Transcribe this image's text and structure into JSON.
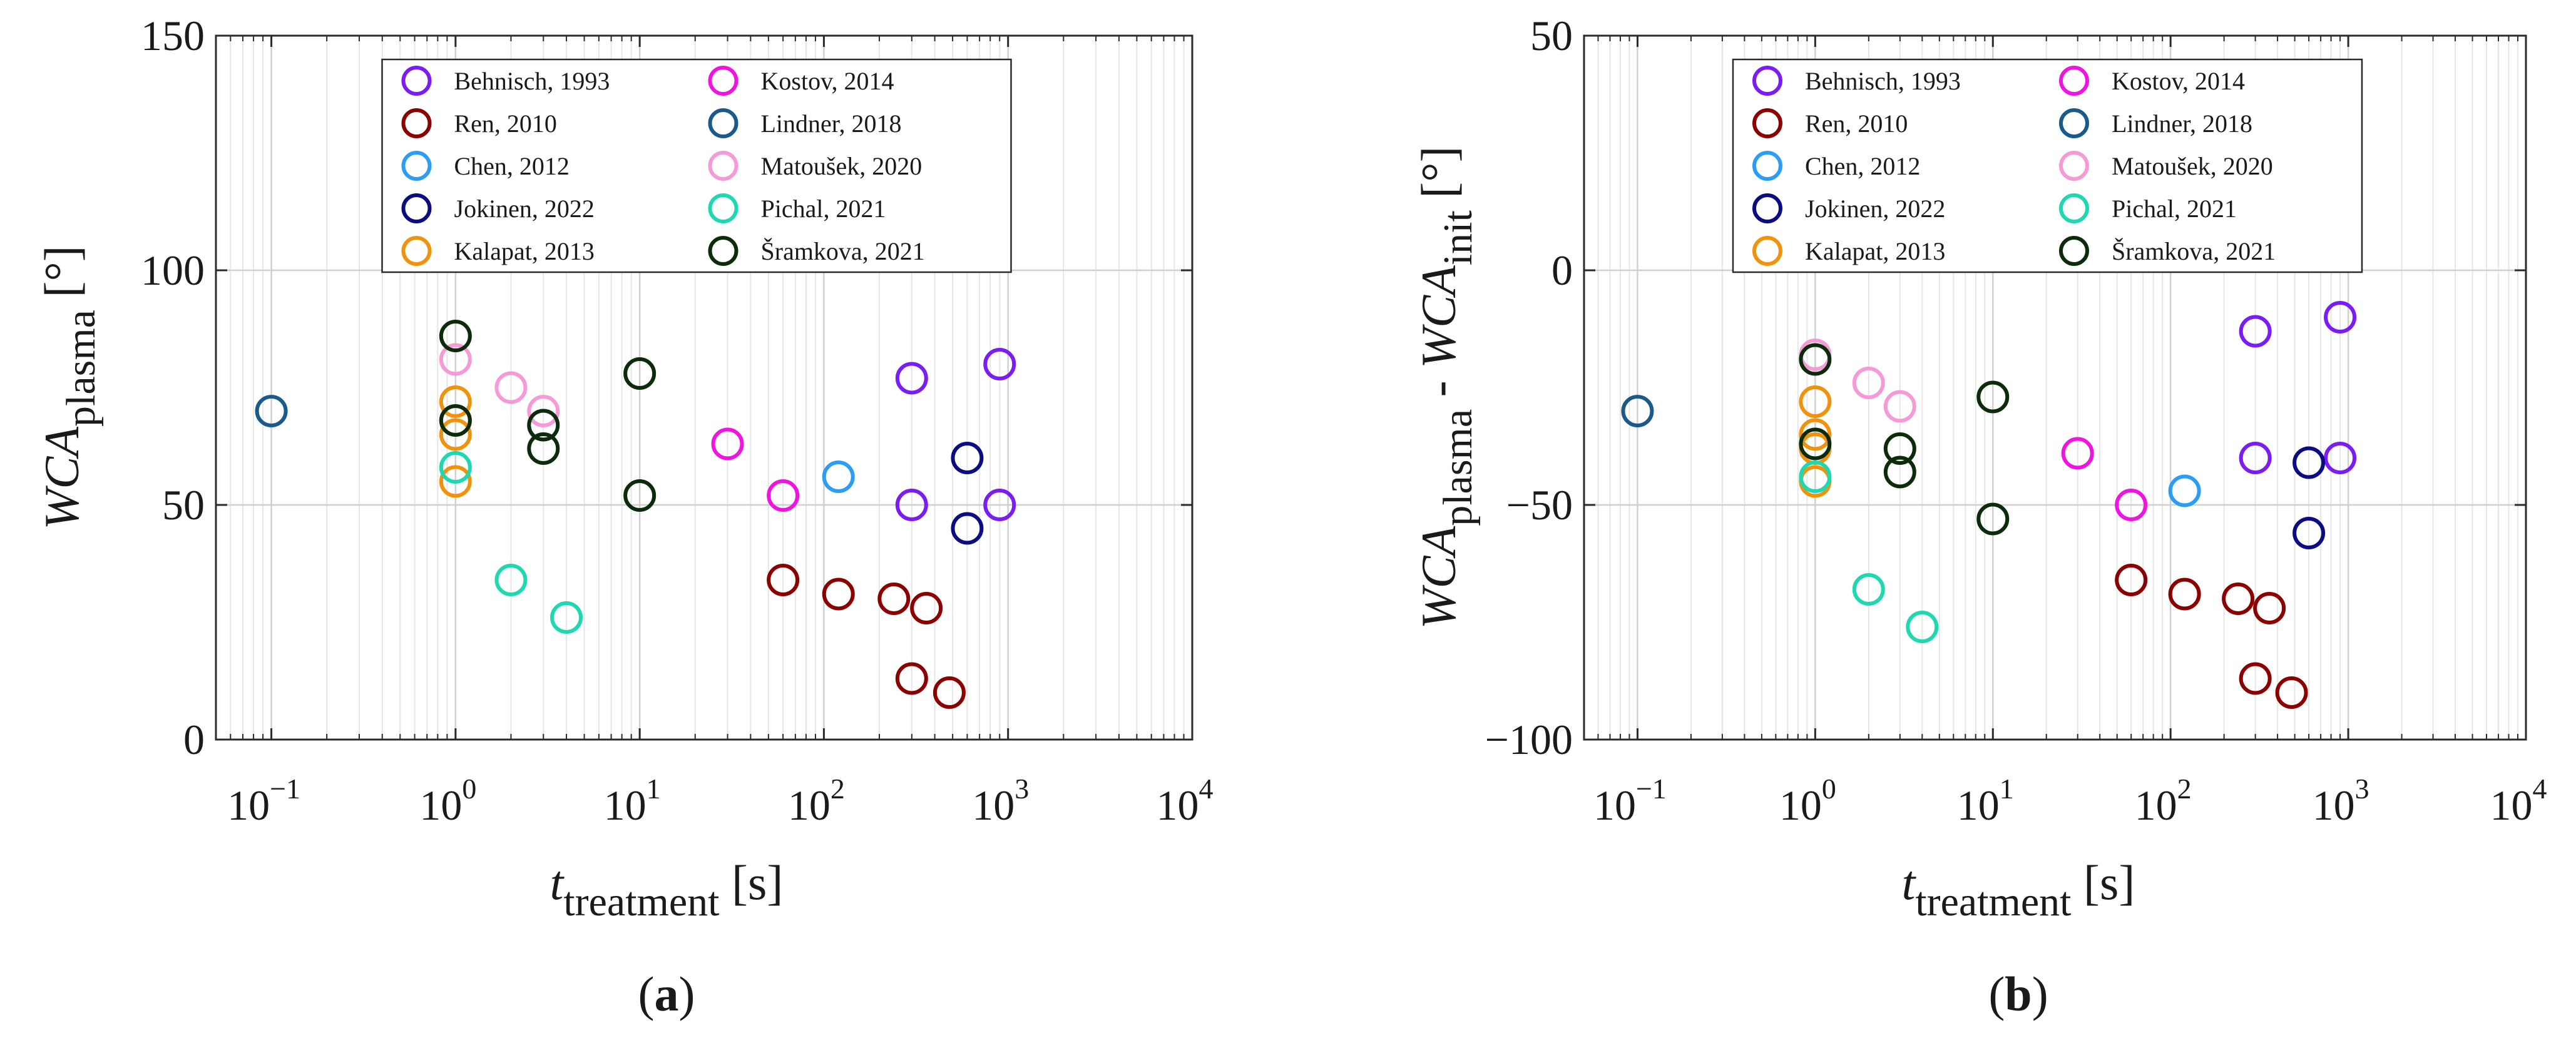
{
  "colors": {
    "behnisch": "#7a1cf2",
    "ren": "#8b0000",
    "chen": "#2b9df4",
    "jokinen": "#0b0b82",
    "kalapat": "#f0920c",
    "kostov": "#ef14e0",
    "lindner": "#1a5a8a",
    "matousek": "#f59ad6",
    "pichal": "#1dd8b0",
    "sramkova": "#0b2b0b"
  },
  "chart_data": [
    {
      "type": "scatter",
      "panel_label": "a",
      "xscale": "log",
      "xlim": [
        0.05,
        10000
      ],
      "ylim": [
        0,
        150
      ],
      "yticks": [
        0,
        50,
        100,
        150
      ],
      "xticks": [
        0.1,
        1,
        10,
        100,
        1000,
        10000
      ],
      "xtick_labels": [
        {
          "base": "10",
          "exp": "−1"
        },
        {
          "base": "10",
          "exp": "0"
        },
        {
          "base": "10",
          "exp": "1"
        },
        {
          "base": "10",
          "exp": "2"
        },
        {
          "base": "10",
          "exp": "3"
        },
        {
          "base": "10",
          "exp": "4"
        }
      ],
      "xlabel": {
        "main": "t",
        "sub": "treatment",
        "unit": "[s]"
      },
      "ylabel": {
        "parts": [
          {
            "t": "WCA",
            "italic": true
          },
          {
            "t": "plasma",
            "sub": true
          }
        ],
        "unit": "[°]"
      },
      "legend_location": "top",
      "series": [
        {
          "name": "Behnisch, 1993",
          "color_key": "behnisch",
          "x": [
            300,
            300,
            900,
            900
          ],
          "y": [
            77,
            50,
            80,
            50
          ]
        },
        {
          "name": "Ren, 2010",
          "color_key": "ren",
          "x": [
            60,
            120,
            240,
            300,
            360,
            480
          ],
          "y": [
            34,
            31,
            30,
            13,
            28,
            10
          ]
        },
        {
          "name": "Chen, 2012",
          "color_key": "chen",
          "x": [
            120
          ],
          "y": [
            56
          ]
        },
        {
          "name": "Jokinen, 2022",
          "color_key": "jokinen",
          "x": [
            600,
            600
          ],
          "y": [
            60,
            45
          ]
        },
        {
          "name": "Kalapat, 2013",
          "color_key": "kalapat",
          "x": [
            1,
            1,
            1,
            1
          ],
          "y": [
            72,
            68,
            65,
            55
          ]
        },
        {
          "name": "Kostov, 2014",
          "color_key": "kostov",
          "x": [
            30,
            60
          ],
          "y": [
            63,
            52
          ]
        },
        {
          "name": "Lindner, 2018",
          "color_key": "lindner",
          "x": [
            0.1
          ],
          "y": [
            70
          ]
        },
        {
          "name": "Matoušek, 2020",
          "color_key": "matousek",
          "x": [
            1,
            2,
            3
          ],
          "y": [
            81,
            75,
            70
          ]
        },
        {
          "name": "Pichal, 2021",
          "color_key": "pichal",
          "x": [
            1,
            2,
            4
          ],
          "y": [
            58,
            34,
            26
          ]
        },
        {
          "name": "Šramkova, 2021",
          "color_key": "sramkova",
          "x": [
            1,
            1,
            3,
            3,
            10,
            10
          ],
          "y": [
            86,
            68,
            67,
            62,
            78,
            52
          ]
        }
      ]
    },
    {
      "type": "scatter",
      "panel_label": "b",
      "xscale": "log",
      "xlim": [
        0.05,
        10000
      ],
      "ylim": [
        -100,
        50
      ],
      "yticks": [
        -100,
        -50,
        0,
        50
      ],
      "ytick_labels": [
        "−100",
        "−50",
        "0",
        "50"
      ],
      "xticks": [
        0.1,
        1,
        10,
        100,
        1000,
        10000
      ],
      "xtick_labels": [
        {
          "base": "10",
          "exp": "−1"
        },
        {
          "base": "10",
          "exp": "0"
        },
        {
          "base": "10",
          "exp": "1"
        },
        {
          "base": "10",
          "exp": "2"
        },
        {
          "base": "10",
          "exp": "3"
        },
        {
          "base": "10",
          "exp": "4"
        }
      ],
      "xlabel": {
        "main": "t",
        "sub": "treatment",
        "unit": "[s]"
      },
      "ylabel": {
        "parts": [
          {
            "t": "WCA",
            "italic": true
          },
          {
            "t": "plasma",
            "sub": true
          },
          {
            "t": " - "
          },
          {
            "t": "WCA",
            "italic": true
          },
          {
            "t": "init",
            "sub": true
          }
        ],
        "unit": "[°]"
      },
      "legend_location": "top",
      "series": [
        {
          "name": "Behnisch, 1993",
          "color_key": "behnisch",
          "x": [
            300,
            300,
            900,
            900
          ],
          "y": [
            -13,
            -40,
            -10,
            -40
          ]
        },
        {
          "name": "Ren, 2010",
          "color_key": "ren",
          "x": [
            60,
            120,
            240,
            300,
            360,
            480
          ],
          "y": [
            -66,
            -69,
            -70,
            -87,
            -72,
            -90
          ]
        },
        {
          "name": "Chen, 2012",
          "color_key": "chen",
          "x": [
            120
          ],
          "y": [
            -47
          ]
        },
        {
          "name": "Jokinen, 2022",
          "color_key": "jokinen",
          "x": [
            600,
            600
          ],
          "y": [
            -41,
            -56
          ]
        },
        {
          "name": "Kalapat, 2013",
          "color_key": "kalapat",
          "x": [
            1,
            1,
            1,
            1
          ],
          "y": [
            -28,
            -35,
            -38,
            -45
          ]
        },
        {
          "name": "Kostov, 2014",
          "color_key": "kostov",
          "x": [
            30,
            60
          ],
          "y": [
            -39,
            -50
          ]
        },
        {
          "name": "Lindner, 2018",
          "color_key": "lindner",
          "x": [
            0.1
          ],
          "y": [
            -30
          ]
        },
        {
          "name": "Matoušek, 2020",
          "color_key": "matousek",
          "x": [
            1,
            2,
            3
          ],
          "y": [
            -18,
            -24,
            -29
          ]
        },
        {
          "name": "Pichal, 2021",
          "color_key": "pichal",
          "x": [
            1,
            2,
            4
          ],
          "y": [
            -44,
            -68,
            -76
          ]
        },
        {
          "name": "Šramkova, 2021",
          "color_key": "sramkova",
          "x": [
            1,
            1,
            3,
            3,
            10,
            10
          ],
          "y": [
            -19,
            -37,
            -38,
            -43,
            -27,
            -53
          ]
        }
      ]
    }
  ]
}
